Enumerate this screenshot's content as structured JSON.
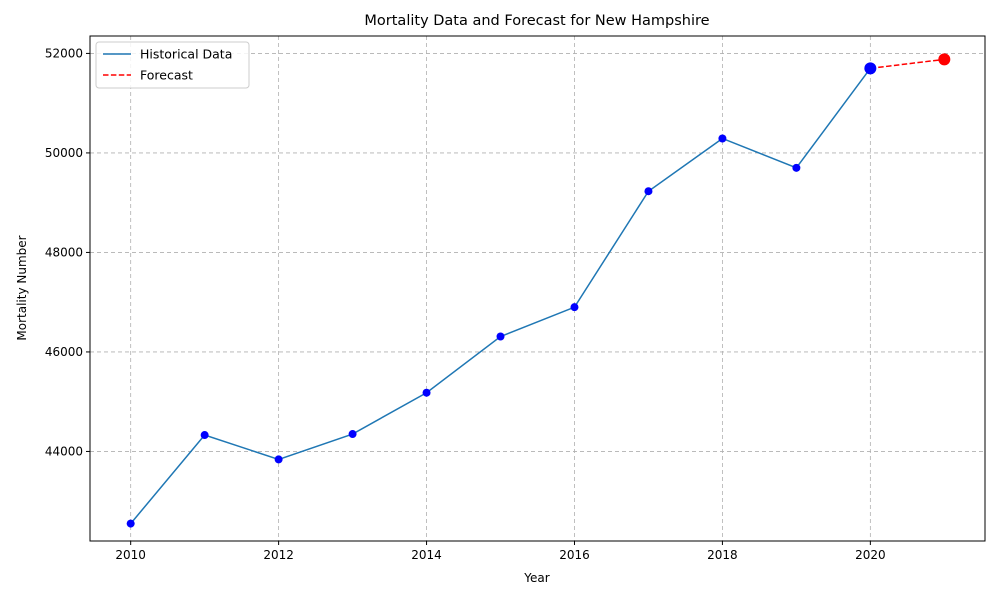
{
  "chart_data": {
    "type": "line",
    "title": "Mortality Data and Forecast for New Hampshire",
    "xlabel": "Year",
    "ylabel": "Mortality Number",
    "xlim": [
      2009.45,
      2021.55
    ],
    "ylim": [
      42200,
      52350
    ],
    "x_ticks": [
      2010,
      2012,
      2014,
      2016,
      2018,
      2020
    ],
    "y_ticks": [
      44000,
      46000,
      48000,
      50000,
      52000
    ],
    "grid": true,
    "legend_position": "top-left",
    "series": [
      {
        "name": "Historical Data",
        "style": "solid",
        "color": "#1f77b4",
        "marker_color": "#0000ff",
        "x": [
          2010,
          2011,
          2012,
          2013,
          2014,
          2015,
          2016,
          2017,
          2018,
          2019,
          2020
        ],
        "y": [
          42550,
          44330,
          43840,
          44350,
          45180,
          46310,
          46900,
          49230,
          50290,
          49700,
          51700
        ]
      },
      {
        "name": "Forecast",
        "style": "dashed",
        "color": "#ff0000",
        "marker_color": "#ff0000",
        "x": [
          2020,
          2021
        ],
        "y": [
          51700,
          51880
        ]
      }
    ]
  }
}
